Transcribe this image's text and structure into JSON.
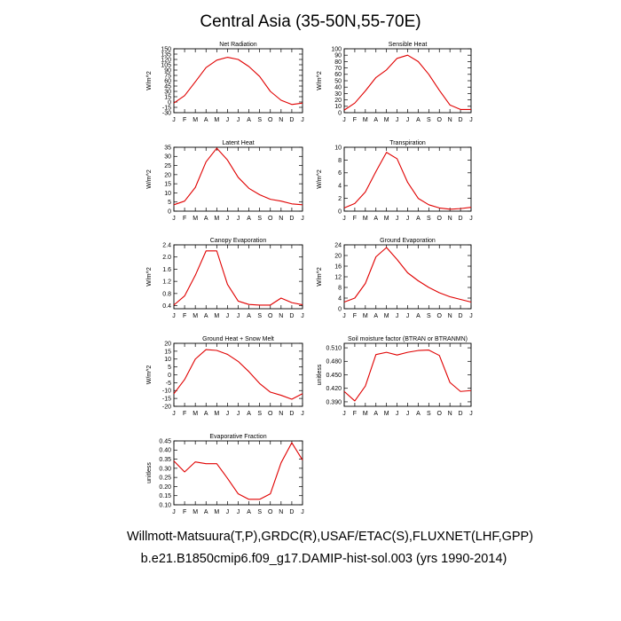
{
  "figure": {
    "title": "Central Asia (35-50N,55-70E)",
    "footer_line1": "Willmott-Matsuura(T,P),GRDC(R),USAF/ETAC(S),FLUXNET(LHF,GPP)",
    "footer_line2": "b.e21.B1850cmip6.f09_g17.DAMIP-hist-sol.003 (yrs 1990-2014)",
    "line_color": "#e00000"
  },
  "chart_data": [
    {
      "type": "line",
      "title": "Net Radiation",
      "ylabel": "W/m^2",
      "x": [
        "J",
        "F",
        "M",
        "A",
        "M",
        "J",
        "J",
        "A",
        "S",
        "O",
        "N",
        "D",
        "J"
      ],
      "yticks": [
        -30,
        -15,
        0,
        15,
        30,
        45,
        60,
        75,
        90,
        105,
        120,
        135,
        150
      ],
      "ylim": [
        -30,
        150
      ],
      "series": [
        {
          "values": [
            -3,
            18,
            57,
            97,
            118,
            126,
            120,
            100,
            72,
            30,
            5,
            -7,
            -3
          ]
        }
      ]
    },
    {
      "type": "line",
      "title": "Sensible Heat",
      "ylabel": "W/m^2",
      "x": [
        "J",
        "F",
        "M",
        "A",
        "M",
        "J",
        "J",
        "A",
        "S",
        "O",
        "N",
        "D",
        "J"
      ],
      "yticks": [
        0,
        10,
        20,
        30,
        40,
        50,
        60,
        70,
        80,
        90,
        100
      ],
      "ylim": [
        0,
        100
      ],
      "series": [
        {
          "values": [
            4,
            15,
            34,
            55,
            67,
            85,
            90,
            80,
            60,
            35,
            12,
            5,
            5
          ]
        }
      ]
    },
    {
      "type": "line",
      "title": "Latent Heat",
      "ylabel": "W/m^2",
      "x": [
        "J",
        "F",
        "M",
        "A",
        "M",
        "J",
        "J",
        "A",
        "S",
        "O",
        "N",
        "D",
        "J"
      ],
      "yticks": [
        0,
        5,
        10,
        15,
        20,
        25,
        30,
        35
      ],
      "ylim": [
        0,
        35
      ],
      "series": [
        {
          "values": [
            3.5,
            5.5,
            13,
            27,
            34.5,
            28,
            18.5,
            12.5,
            9,
            6.5,
            5.5,
            4,
            3.5
          ]
        }
      ]
    },
    {
      "type": "line",
      "title": "Transpiration",
      "ylabel": "W/m^2",
      "x": [
        "J",
        "F",
        "M",
        "A",
        "M",
        "J",
        "J",
        "A",
        "S",
        "O",
        "N",
        "D",
        "J"
      ],
      "yticks": [
        0,
        2,
        4,
        6,
        8,
        10
      ],
      "ylim": [
        0,
        10
      ],
      "series": [
        {
          "values": [
            0.5,
            1.2,
            3,
            6.2,
            9.2,
            8.2,
            4.5,
            2,
            1,
            0.5,
            0.3,
            0.4,
            0.6
          ]
        }
      ]
    },
    {
      "type": "line",
      "title": "Canopy Evaporation",
      "ylabel": "W/m^2",
      "x": [
        "J",
        "F",
        "M",
        "A",
        "M",
        "J",
        "J",
        "A",
        "S",
        "O",
        "N",
        "D",
        "J"
      ],
      "yticks": [
        0.4,
        0.8,
        1.2,
        1.6,
        2.0,
        2.4
      ],
      "ylim": [
        0.3,
        2.4
      ],
      "series": [
        {
          "values": [
            0.42,
            0.72,
            1.4,
            2.2,
            2.2,
            1.1,
            0.55,
            0.44,
            0.42,
            0.42,
            0.65,
            0.5,
            0.43
          ]
        }
      ]
    },
    {
      "type": "line",
      "title": "Ground Evaporation",
      "ylabel": "W/m^2",
      "x": [
        "J",
        "F",
        "M",
        "A",
        "M",
        "J",
        "J",
        "A",
        "S",
        "O",
        "N",
        "D",
        "J"
      ],
      "yticks": [
        0,
        4,
        8,
        12,
        16,
        20,
        24
      ],
      "ylim": [
        0,
        24
      ],
      "series": [
        {
          "values": [
            2.5,
            4,
            9.5,
            19.5,
            23,
            18.5,
            13.5,
            10.5,
            8,
            6,
            4.5,
            3.5,
            2.5
          ]
        }
      ]
    },
    {
      "type": "line",
      "title": "Ground Heat + Snow Melt",
      "ylabel": "W/m^2",
      "x": [
        "J",
        "F",
        "M",
        "A",
        "M",
        "J",
        "J",
        "A",
        "S",
        "O",
        "N",
        "D",
        "J"
      ],
      "yticks": [
        -20,
        -15,
        -10,
        -5,
        0,
        5,
        10,
        15,
        20
      ],
      "ylim": [
        -20,
        20
      ],
      "series": [
        {
          "values": [
            -12,
            -3,
            10,
            16,
            15.5,
            13,
            8.5,
            2,
            -5.5,
            -11,
            -13,
            -15.5,
            -12
          ]
        }
      ]
    },
    {
      "type": "line",
      "title": "Soil moisture factor (BTRAN or BTRANMN)",
      "ylabel": "unitless",
      "x": [
        "J",
        "F",
        "M",
        "A",
        "M",
        "J",
        "J",
        "A",
        "S",
        "O",
        "N",
        "D",
        "J"
      ],
      "yticks": [
        0.39,
        0.42,
        0.45,
        0.48,
        0.51
      ],
      "ylim": [
        0.38,
        0.52
      ],
      "series": [
        {
          "values": [
            0.413,
            0.392,
            0.425,
            0.495,
            0.5,
            0.494,
            0.5,
            0.504,
            0.505,
            0.493,
            0.433,
            0.413,
            0.415
          ]
        }
      ]
    },
    {
      "type": "line",
      "title": "Evaporative Fraction",
      "ylabel": "unitless",
      "x": [
        "J",
        "F",
        "M",
        "A",
        "M",
        "J",
        "J",
        "A",
        "S",
        "O",
        "N",
        "D",
        "J"
      ],
      "yticks": [
        0.1,
        0.15,
        0.2,
        0.25,
        0.3,
        0.35,
        0.4,
        0.45
      ],
      "ylim": [
        0.1,
        0.45
      ],
      "series": [
        {
          "values": [
            0.34,
            0.28,
            0.335,
            0.325,
            0.325,
            0.245,
            0.16,
            0.13,
            0.13,
            0.16,
            0.33,
            0.44,
            0.345
          ]
        }
      ]
    }
  ]
}
